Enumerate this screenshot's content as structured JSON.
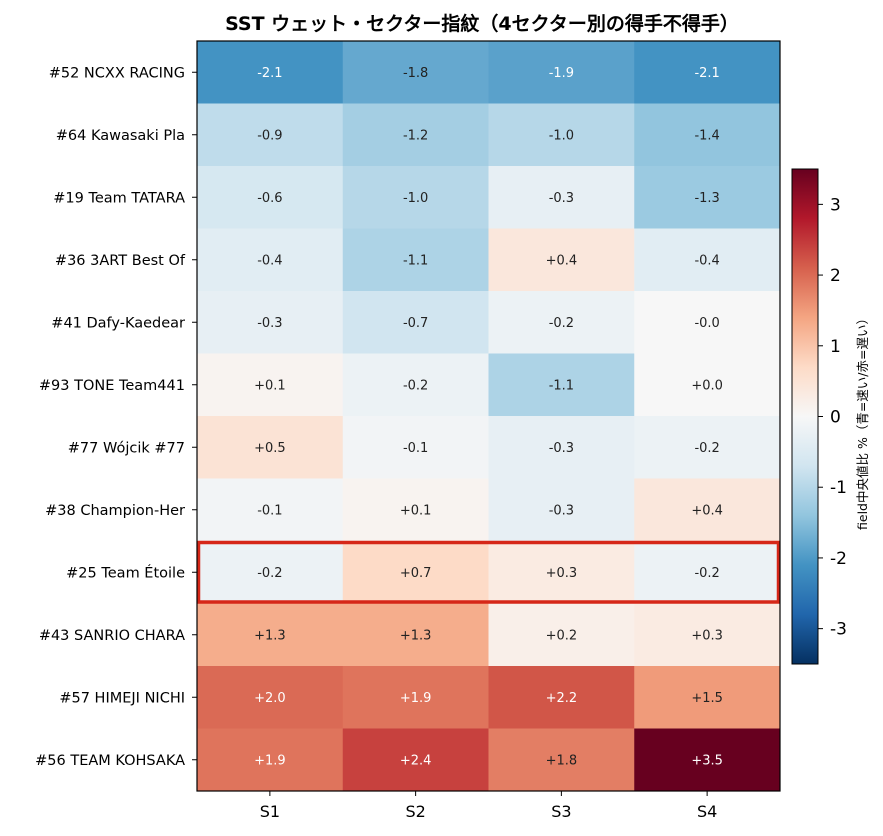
{
  "chart_data": {
    "type": "heatmap",
    "title": "SST ウェット・セクター指紋（4セクター別の得手不得手）",
    "columns": [
      "S1",
      "S2",
      "S3",
      "S4"
    ],
    "rows": [
      "#52 NCXX RACING ",
      "#64 Kawasaki Pla",
      "#19 Team TATARA ",
      "#36 3ART Best Of",
      "#41 Dafy-Kaedear",
      "#93 TONE Team441",
      "#77 Wójcik  #77 ",
      "#38 Champion-Her",
      "#25 Team Étoile",
      "#43 SANRIO CHARA",
      "#57 HIMEJI NICHI",
      "#56 TEAM KOHSAKA"
    ],
    "values": [
      [
        -2.1,
        -1.8,
        -1.9,
        -2.1
      ],
      [
        -0.9,
        -1.2,
        -1.0,
        -1.4
      ],
      [
        -0.6,
        -1.0,
        -0.3,
        -1.3
      ],
      [
        -0.4,
        -1.1,
        0.4,
        -0.4
      ],
      [
        -0.3,
        -0.7,
        -0.2,
        -0.0
      ],
      [
        0.1,
        -0.2,
        -1.1,
        0.0
      ],
      [
        0.5,
        -0.1,
        -0.3,
        -0.2
      ],
      [
        -0.1,
        0.1,
        -0.3,
        0.4
      ],
      [
        -0.2,
        0.7,
        0.3,
        -0.2
      ],
      [
        1.3,
        1.3,
        0.2,
        0.3
      ],
      [
        2.0,
        1.9,
        2.2,
        1.5
      ],
      [
        1.9,
        2.4,
        1.8,
        3.5
      ]
    ],
    "cell_labels": [
      [
        "-2.1",
        "-1.8",
        "-1.9",
        "-2.1"
      ],
      [
        "-0.9",
        "-1.2",
        "-1.0",
        "-1.4"
      ],
      [
        "-0.6",
        "-1.0",
        "-0.3",
        "-1.3"
      ],
      [
        "-0.4",
        "-1.1",
        "+0.4",
        "-0.4"
      ],
      [
        "-0.3",
        "-0.7",
        "-0.2",
        "-0.0"
      ],
      [
        "+0.1",
        "-0.2",
        "-1.1",
        "+0.0"
      ],
      [
        "+0.5",
        "-0.1",
        "-0.3",
        "-0.2"
      ],
      [
        "-0.1",
        "+0.1",
        "-0.3",
        "+0.4"
      ],
      [
        "-0.2",
        "+0.7",
        "+0.3",
        "-0.2"
      ],
      [
        "+1.3",
        "+1.3",
        "+0.2",
        "+0.3"
      ],
      [
        "+2.0",
        "+1.9",
        "+2.2",
        "+1.5"
      ],
      [
        "+1.9",
        "+2.4",
        "+1.8",
        "+3.5"
      ]
    ],
    "highlighted_row": "#25 Team Étoile",
    "highlight_color": "#d62718",
    "colormap": "RdBu_r",
    "vlim": [
      -3.5,
      3.5
    ],
    "colorbar": {
      "ticks": [
        -3,
        -2,
        -1,
        0,
        1,
        2,
        3
      ],
      "label": "field中央値比 %（青=速い/赤=遅い）"
    },
    "grid": false
  }
}
